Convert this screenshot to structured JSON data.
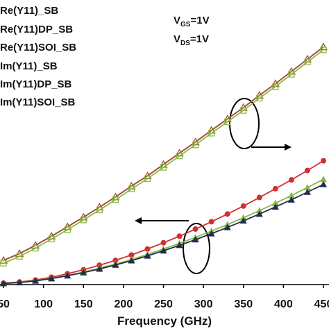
{
  "chart_data": {
    "type": "line",
    "x_label": "Frequency (GHz)",
    "x": [
      50,
      70,
      90,
      110,
      130,
      150,
      170,
      190,
      210,
      230,
      250,
      270,
      290,
      310,
      330,
      350,
      370,
      390,
      410,
      430,
      450
    ],
    "xlim": [
      50,
      450
    ],
    "xticks": [
      50,
      100,
      150,
      200,
      250,
      300,
      350,
      400,
      450
    ],
    "ylim": [
      0,
      100
    ],
    "annotations": [
      {
        "main": "V",
        "subscript": "GS",
        "suffix": "=1V"
      },
      {
        "main": "V",
        "subscript": "DS",
        "suffix": "=1V"
      }
    ],
    "series": [
      {
        "name": "Re(Y11)_SB",
        "color": "#c62828",
        "marker": "none",
        "values": [
          8.5,
          10.9,
          13.8,
          17.0,
          20.3,
          23.7,
          27.2,
          30.8,
          34.6,
          38.2,
          42.2,
          46.2,
          50.1,
          54.2,
          58.2,
          62.2,
          66.5,
          70.6,
          74.9,
          79.2,
          83.5
        ]
      },
      {
        "name": "Re(Y11)DP_SB",
        "color": "#a0522d",
        "marker": "triangle-open",
        "values": [
          8.5,
          10.9,
          13.8,
          17.0,
          20.3,
          23.7,
          27.2,
          30.8,
          34.6,
          38.2,
          42.2,
          46.2,
          50.1,
          54.2,
          58.2,
          62.2,
          66.5,
          70.6,
          74.9,
          79.2,
          83.5
        ]
      },
      {
        "name": "Re(Y11)SOI_SB",
        "color": "#8bb84a",
        "marker": "square-open",
        "values": [
          7.5,
          9.9,
          12.8,
          16.0,
          19.3,
          22.7,
          26.2,
          29.8,
          33.6,
          37.2,
          41.2,
          45.2,
          49.1,
          53.2,
          57.2,
          61.2,
          65.5,
          69.6,
          73.9,
          78.2,
          82.5
        ]
      },
      {
        "name": "Im(Y11)_SB",
        "color": "#d32f2f",
        "marker": "circle",
        "values": [
          0.5,
          0.9,
          1.6,
          2.6,
          3.8,
          5.2,
          6.8,
          8.5,
          10.4,
          12.5,
          14.7,
          17.0,
          19.5,
          22.1,
          24.8,
          27.6,
          30.6,
          33.7,
          36.8,
          40.1,
          43.5
        ]
      },
      {
        "name": "Im(Y11)DP_SB",
        "color": "#8bb84a",
        "marker": "triangle",
        "values": [
          0.4,
          0.8,
          1.4,
          2.2,
          3.2,
          4.4,
          5.8,
          7.2,
          8.8,
          10.6,
          12.5,
          14.5,
          16.6,
          18.8,
          21.1,
          23.5,
          26.0,
          28.6,
          31.3,
          34.1,
          37.0
        ]
      },
      {
        "name": "Im(Y11)SOI_SB",
        "color": "#1f2d4a",
        "marker": "triangle",
        "values": [
          0.4,
          0.7,
          1.3,
          2.1,
          3.1,
          4.2,
          5.5,
          6.9,
          8.4,
          10.1,
          11.9,
          13.8,
          15.8,
          17.9,
          20.1,
          22.4,
          24.8,
          27.3,
          29.8,
          32.5,
          35.2
        ]
      }
    ]
  }
}
